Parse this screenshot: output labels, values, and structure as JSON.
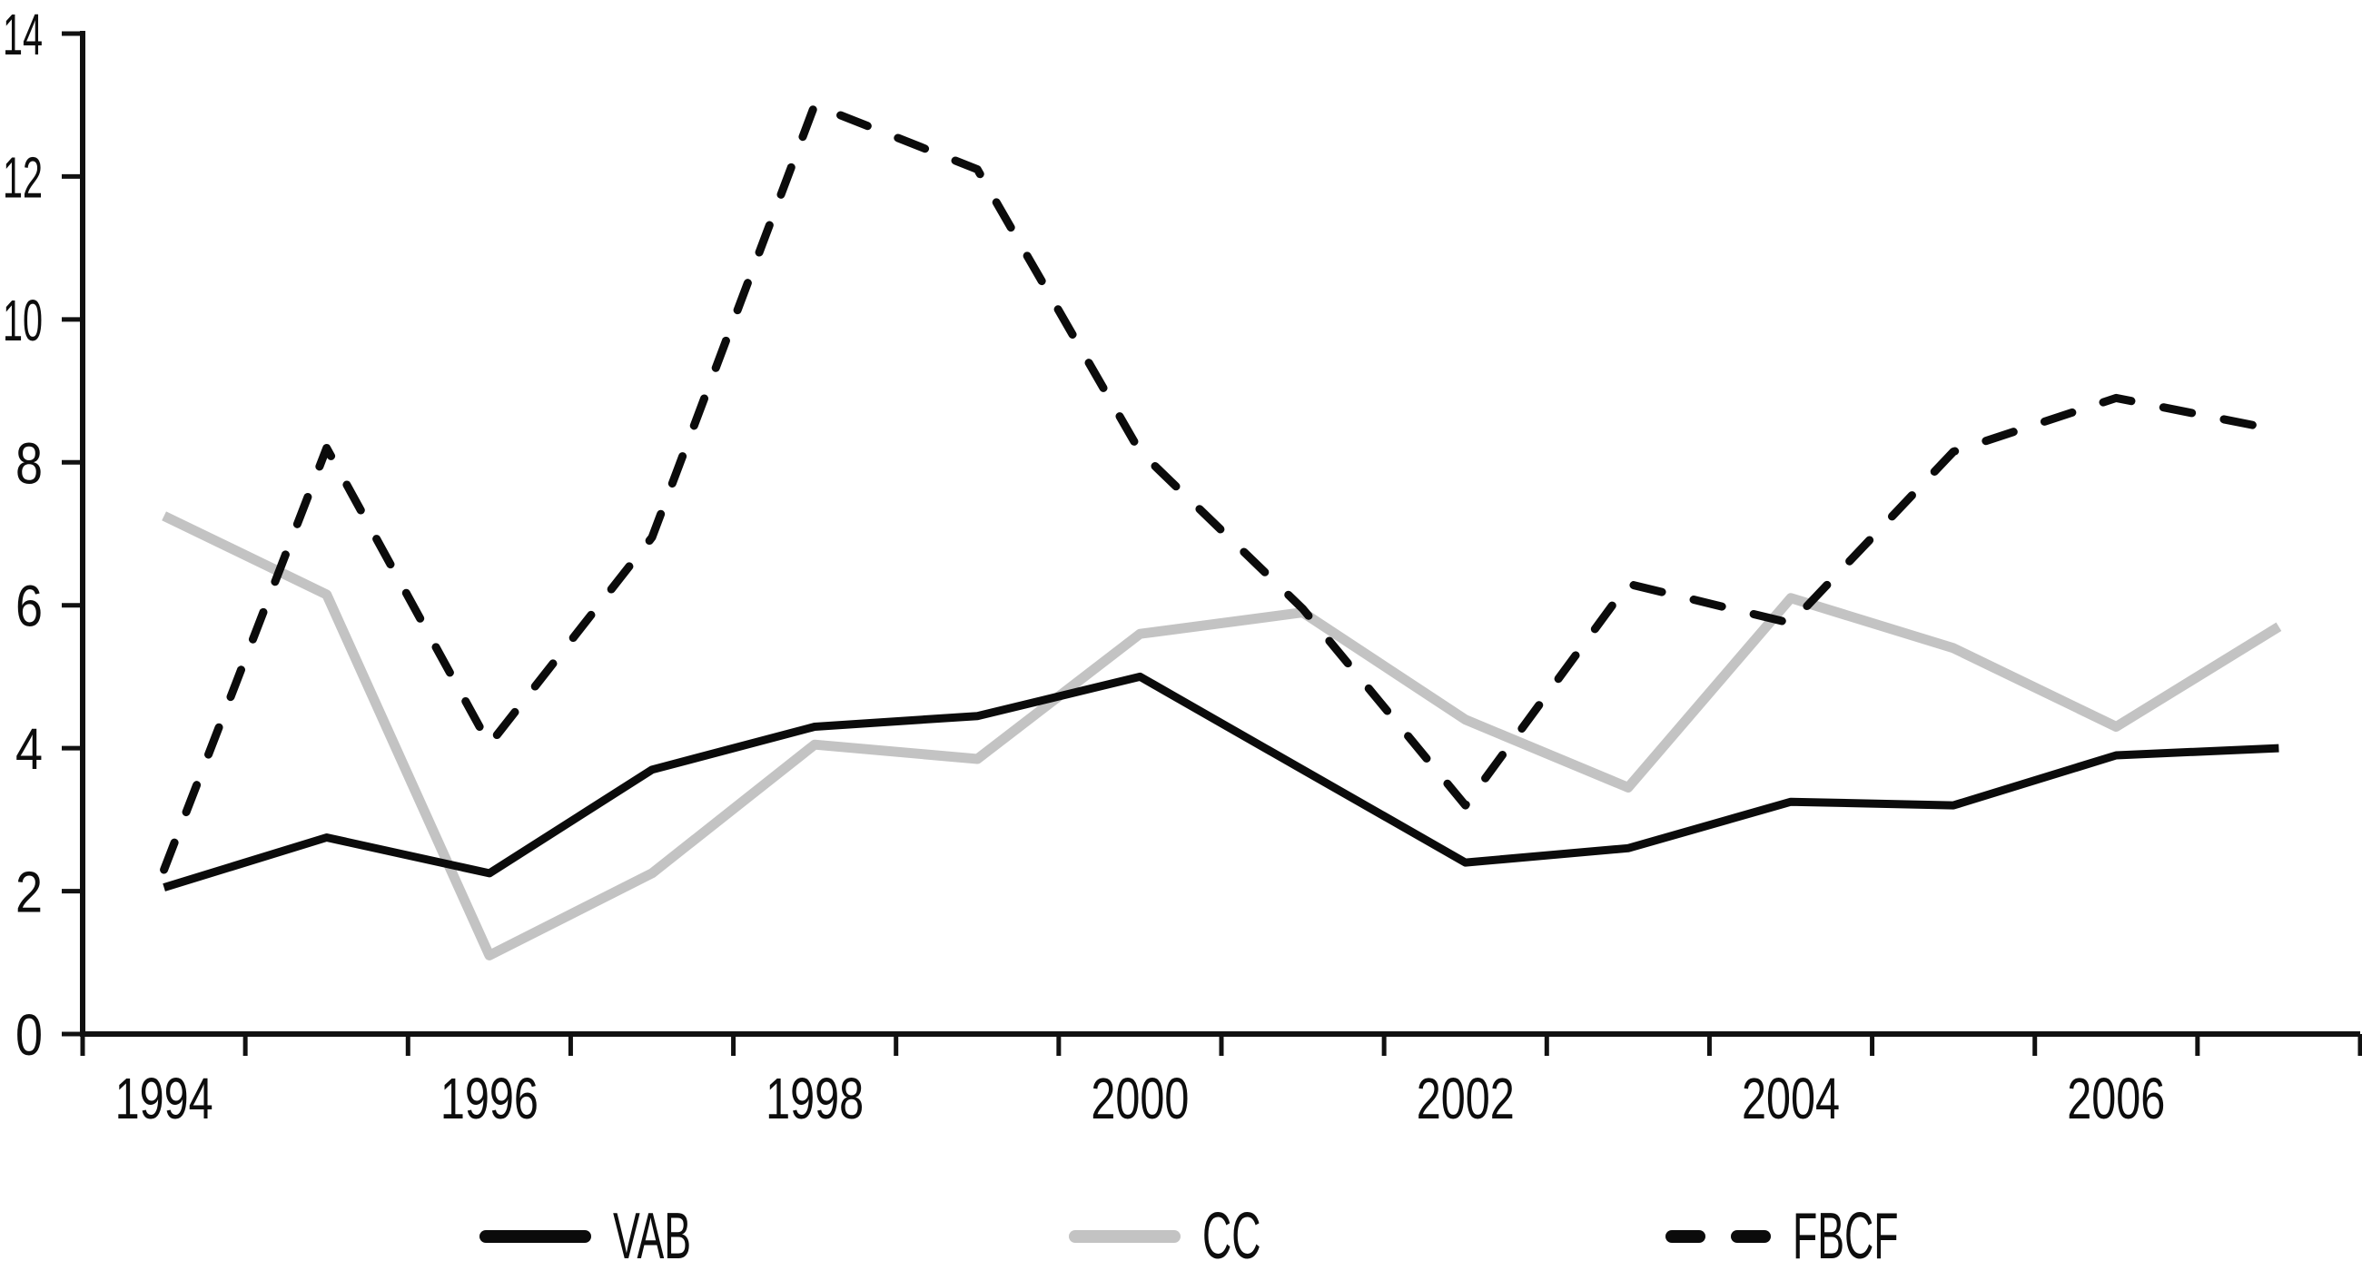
{
  "chart_data": {
    "type": "line",
    "title": "",
    "xlabel": "",
    "ylabel": "",
    "x": [
      1994,
      1995,
      1996,
      1997,
      1998,
      1999,
      2000,
      2001,
      2002,
      2003,
      2004,
      2005,
      2006,
      2007
    ],
    "x_tick_labels": [
      "1994",
      "1996",
      "1998",
      "2000",
      "2002",
      "2004",
      "2006"
    ],
    "y_ticks": [
      0,
      2,
      4,
      6,
      8,
      10,
      12,
      14
    ],
    "ylim": [
      0,
      14
    ],
    "grid": false,
    "legend_position": "bottom",
    "axis_color": "#111111",
    "series": [
      {
        "name": "VAB",
        "style": "solid",
        "color": "#0b0b0b",
        "values": [
          2.05,
          2.75,
          2.25,
          3.7,
          4.3,
          4.45,
          5.0,
          3.7,
          2.4,
          2.6,
          3.25,
          3.2,
          3.9,
          4.0
        ]
      },
      {
        "name": "CC",
        "style": "solid",
        "color": "#c3c3c3",
        "values": [
          7.25,
          6.15,
          1.1,
          2.25,
          4.05,
          3.85,
          5.6,
          5.9,
          4.4,
          3.45,
          6.1,
          5.4,
          4.3,
          5.7
        ]
      },
      {
        "name": "FBCF",
        "style": "dashed",
        "color": "#0b0b0b",
        "values": [
          2.3,
          8.2,
          4.05,
          6.95,
          13.0,
          12.1,
          8.15,
          5.95,
          3.2,
          6.3,
          5.75,
          8.15,
          8.9,
          8.45
        ]
      }
    ]
  }
}
